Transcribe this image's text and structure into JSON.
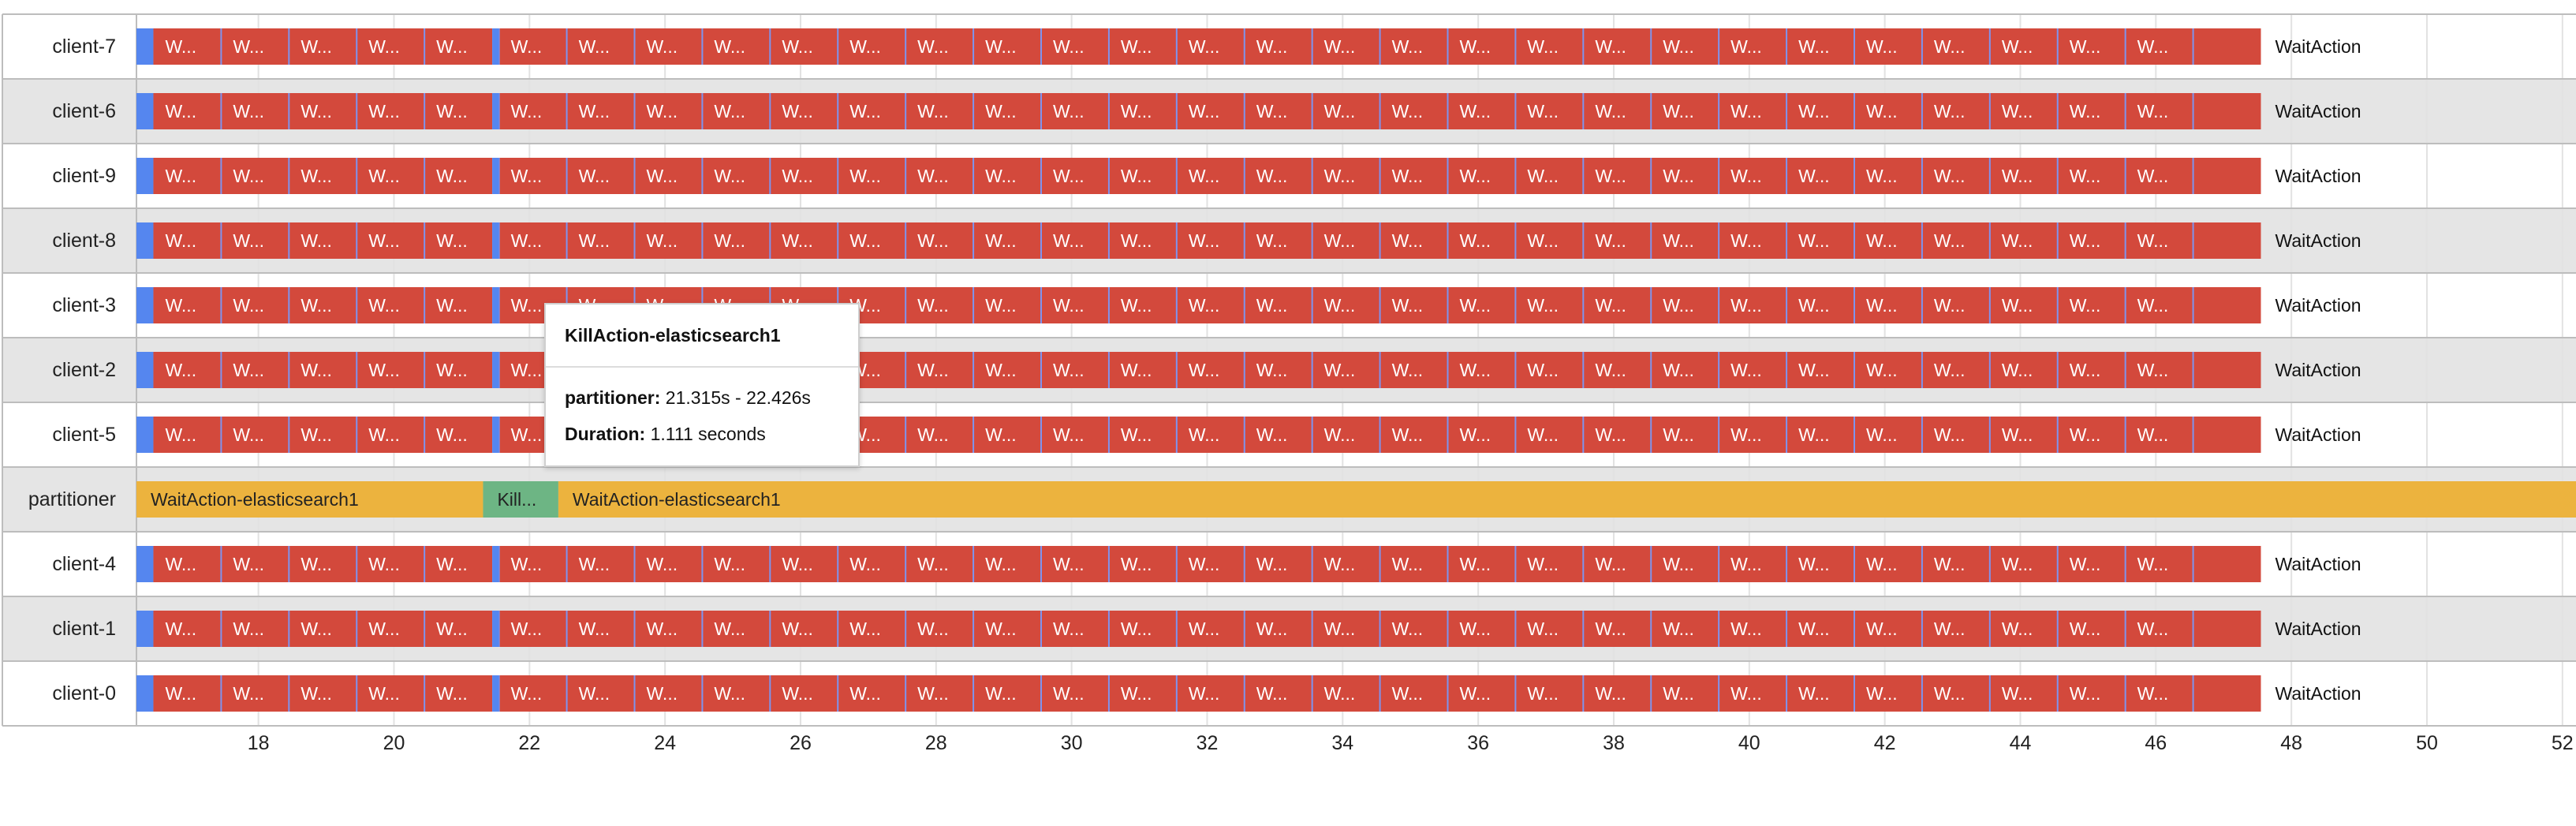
{
  "chart_data": {
    "type": "timeline",
    "x_ticks": [
      18,
      20,
      22,
      24,
      26,
      28,
      30,
      32,
      34,
      36,
      38,
      40,
      42,
      44,
      46,
      48,
      50,
      52
    ],
    "xlim": [
      16.2,
      52.2
    ],
    "rows": [
      {
        "label": "client-7",
        "kind": "client"
      },
      {
        "label": "client-6",
        "kind": "client"
      },
      {
        "label": "client-9",
        "kind": "client"
      },
      {
        "label": "client-8",
        "kind": "client"
      },
      {
        "label": "client-3",
        "kind": "client"
      },
      {
        "label": "client-2",
        "kind": "client"
      },
      {
        "label": "client-5",
        "kind": "client"
      },
      {
        "label": "partitioner",
        "kind": "partitioner"
      },
      {
        "label": "client-4",
        "kind": "client"
      },
      {
        "label": "client-1",
        "kind": "client"
      },
      {
        "label": "client-0",
        "kind": "client"
      }
    ],
    "client_timeline": {
      "start_blue": [
        16.2,
        16.45
      ],
      "segments": [
        {
          "start": 16.45,
          "end": 17.45,
          "label": "W..."
        },
        {
          "start": 17.45,
          "end": 18.45,
          "label": "W..."
        },
        {
          "start": 18.45,
          "end": 19.45,
          "label": "W..."
        },
        {
          "start": 19.45,
          "end": 20.45,
          "label": "W..."
        },
        {
          "start": 20.45,
          "end": 21.45,
          "label": "W..."
        },
        {
          "start": 21.55,
          "end": 22.55,
          "label": "W..."
        },
        {
          "start": 22.55,
          "end": 23.55,
          "label": "W..."
        },
        {
          "start": 23.55,
          "end": 24.55,
          "label": "W..."
        },
        {
          "start": 24.55,
          "end": 25.55,
          "label": "W..."
        },
        {
          "start": 25.55,
          "end": 26.55,
          "label": "W..."
        },
        {
          "start": 26.55,
          "end": 27.55,
          "label": "W..."
        },
        {
          "start": 27.55,
          "end": 28.55,
          "label": "W..."
        },
        {
          "start": 28.55,
          "end": 29.55,
          "label": "W..."
        },
        {
          "start": 29.55,
          "end": 30.55,
          "label": "W..."
        },
        {
          "start": 30.55,
          "end": 31.55,
          "label": "W..."
        },
        {
          "start": 31.55,
          "end": 32.55,
          "label": "W..."
        },
        {
          "start": 32.55,
          "end": 33.55,
          "label": "W..."
        },
        {
          "start": 33.55,
          "end": 34.55,
          "label": "W..."
        },
        {
          "start": 34.55,
          "end": 35.55,
          "label": "W..."
        },
        {
          "start": 35.55,
          "end": 36.55,
          "label": "W..."
        },
        {
          "start": 36.55,
          "end": 37.55,
          "label": "W..."
        },
        {
          "start": 37.55,
          "end": 38.55,
          "label": "W..."
        },
        {
          "start": 38.55,
          "end": 39.55,
          "label": "W..."
        },
        {
          "start": 39.55,
          "end": 40.55,
          "label": "W..."
        },
        {
          "start": 40.55,
          "end": 41.55,
          "label": "W..."
        },
        {
          "start": 41.55,
          "end": 42.55,
          "label": "W..."
        },
        {
          "start": 42.55,
          "end": 43.55,
          "label": "W..."
        },
        {
          "start": 43.55,
          "end": 44.55,
          "label": "W..."
        },
        {
          "start": 44.55,
          "end": 45.55,
          "label": "W..."
        },
        {
          "start": 45.55,
          "end": 46.55,
          "label": "W..."
        },
        {
          "start": 46.55,
          "end": 47.55,
          "label": ""
        }
      ],
      "mid_blue": [
        21.45,
        21.55
      ],
      "end_label": "WaitAction"
    },
    "partitioner_timeline": [
      {
        "start": 16.2,
        "end": 21.315,
        "label": "WaitAction-elasticsearch1",
        "color": "#ecb33e"
      },
      {
        "start": 21.315,
        "end": 22.426,
        "label": "Kill...",
        "color": "#6db584"
      },
      {
        "start": 22.426,
        "end": 52.2,
        "label": "WaitAction-elasticsearch1",
        "color": "#ecb33e"
      }
    ],
    "colors": {
      "wait": "#d3493c",
      "blue": "#5586ef",
      "divider": "#7e94ee",
      "orange": "#ecb33e",
      "green": "#6db584",
      "grid": "#e2e2e2",
      "stripe": "#e5e5e5",
      "row_border": "#bdbdbd"
    }
  },
  "tooltip": {
    "title": "KillAction-elasticsearch1",
    "line1_label": "partitioner:",
    "line1_value": "21.315s - 22.426s",
    "line2_label": "Duration:",
    "line2_value": "1.111 seconds"
  }
}
